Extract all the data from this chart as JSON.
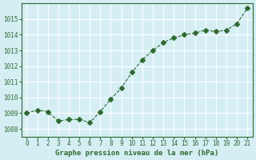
{
  "x": [
    0,
    1,
    2,
    3,
    4,
    5,
    6,
    7,
    8,
    9,
    10,
    11,
    12,
    13,
    14,
    15,
    16,
    17,
    18,
    19,
    20,
    21
  ],
  "y": [
    1009.0,
    1009.2,
    1009.1,
    1008.5,
    1008.6,
    1008.6,
    1008.4,
    1009.1,
    1009.9,
    1010.6,
    1011.6,
    1012.4,
    1013.0,
    1013.5,
    1013.8,
    1014.0,
    1014.1,
    1014.3,
    1014.2,
    1014.3,
    1014.7,
    1015.7
  ],
  "line_color": "#2d6a2d",
  "marker": "D",
  "marker_size": 3,
  "bg_color": "#d4eef4",
  "grid_color": "#ffffff",
  "xlabel": "Graphe pression niveau de la mer (hPa)",
  "xlabel_color": "#2d6a2d",
  "tick_color": "#2d6a2d",
  "ylim": [
    1007.5,
    1016.0
  ],
  "xlim": [
    -0.5,
    21.5
  ],
  "yticks": [
    1008,
    1009,
    1010,
    1011,
    1012,
    1013,
    1014,
    1015
  ],
  "xticks": [
    0,
    1,
    2,
    3,
    4,
    5,
    6,
    7,
    8,
    9,
    10,
    11,
    12,
    13,
    14,
    15,
    16,
    17,
    18,
    19,
    20,
    21
  ],
  "xtick_labels": [
    "0",
    "1",
    "2",
    "3",
    "4",
    "5",
    "6",
    "7",
    "8",
    "9",
    "10",
    "11",
    "12",
    "13",
    "14",
    "15",
    "16",
    "17",
    "18",
    "19",
    "20",
    "21"
  ]
}
